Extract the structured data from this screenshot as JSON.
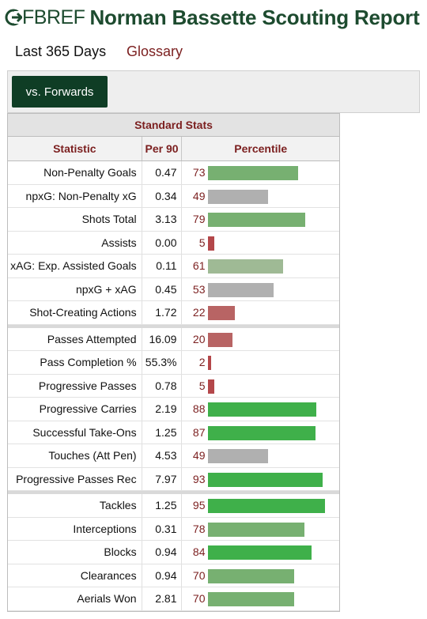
{
  "header": {
    "logo_text": "FBREF",
    "title": "Norman Bassette Scouting Report"
  },
  "nav": {
    "period": "Last 365 Days",
    "glossary": "Glossary"
  },
  "filter": {
    "active_tab": "vs. Forwards"
  },
  "colors": {
    "brand_green": "#1d4b2f",
    "accent_red": "#7b1f1f",
    "bar_high": "#3fb04a",
    "bar_mid_high": "#77b071",
    "bar_mid": "#9fba95",
    "bar_avg": "#b0b0b0",
    "bar_low": "#b86464",
    "bar_very_low": "#b4474a"
  },
  "table": {
    "caption": "Standard Stats",
    "headers": {
      "statistic": "Statistic",
      "per90": "Per 90",
      "percentile": "Percentile"
    },
    "groups": [
      [
        {
          "stat": "Non-Penalty Goals",
          "per90": "0.47",
          "percentile": 73
        },
        {
          "stat": "npxG: Non-Penalty xG",
          "per90": "0.34",
          "percentile": 49
        },
        {
          "stat": "Shots Total",
          "per90": "3.13",
          "percentile": 79
        },
        {
          "stat": "Assists",
          "per90": "0.00",
          "percentile": 5
        },
        {
          "stat": "xAG: Exp. Assisted Goals",
          "per90": "0.11",
          "percentile": 61
        },
        {
          "stat": "npxG + xAG",
          "per90": "0.45",
          "percentile": 53
        },
        {
          "stat": "Shot-Creating Actions",
          "per90": "1.72",
          "percentile": 22
        }
      ],
      [
        {
          "stat": "Passes Attempted",
          "per90": "16.09",
          "percentile": 20
        },
        {
          "stat": "Pass Completion %",
          "per90": "55.3%",
          "percentile": 2
        },
        {
          "stat": "Progressive Passes",
          "per90": "0.78",
          "percentile": 5
        },
        {
          "stat": "Progressive Carries",
          "per90": "2.19",
          "percentile": 88
        },
        {
          "stat": "Successful Take-Ons",
          "per90": "1.25",
          "percentile": 87
        },
        {
          "stat": "Touches (Att Pen)",
          "per90": "4.53",
          "percentile": 49
        },
        {
          "stat": "Progressive Passes Rec",
          "per90": "7.97",
          "percentile": 93
        }
      ],
      [
        {
          "stat": "Tackles",
          "per90": "1.25",
          "percentile": 95
        },
        {
          "stat": "Interceptions",
          "per90": "0.31",
          "percentile": 78
        },
        {
          "stat": "Blocks",
          "per90": "0.94",
          "percentile": 84
        },
        {
          "stat": "Clearances",
          "per90": "0.94",
          "percentile": 70
        },
        {
          "stat": "Aerials Won",
          "per90": "2.81",
          "percentile": 70
        }
      ]
    ]
  }
}
